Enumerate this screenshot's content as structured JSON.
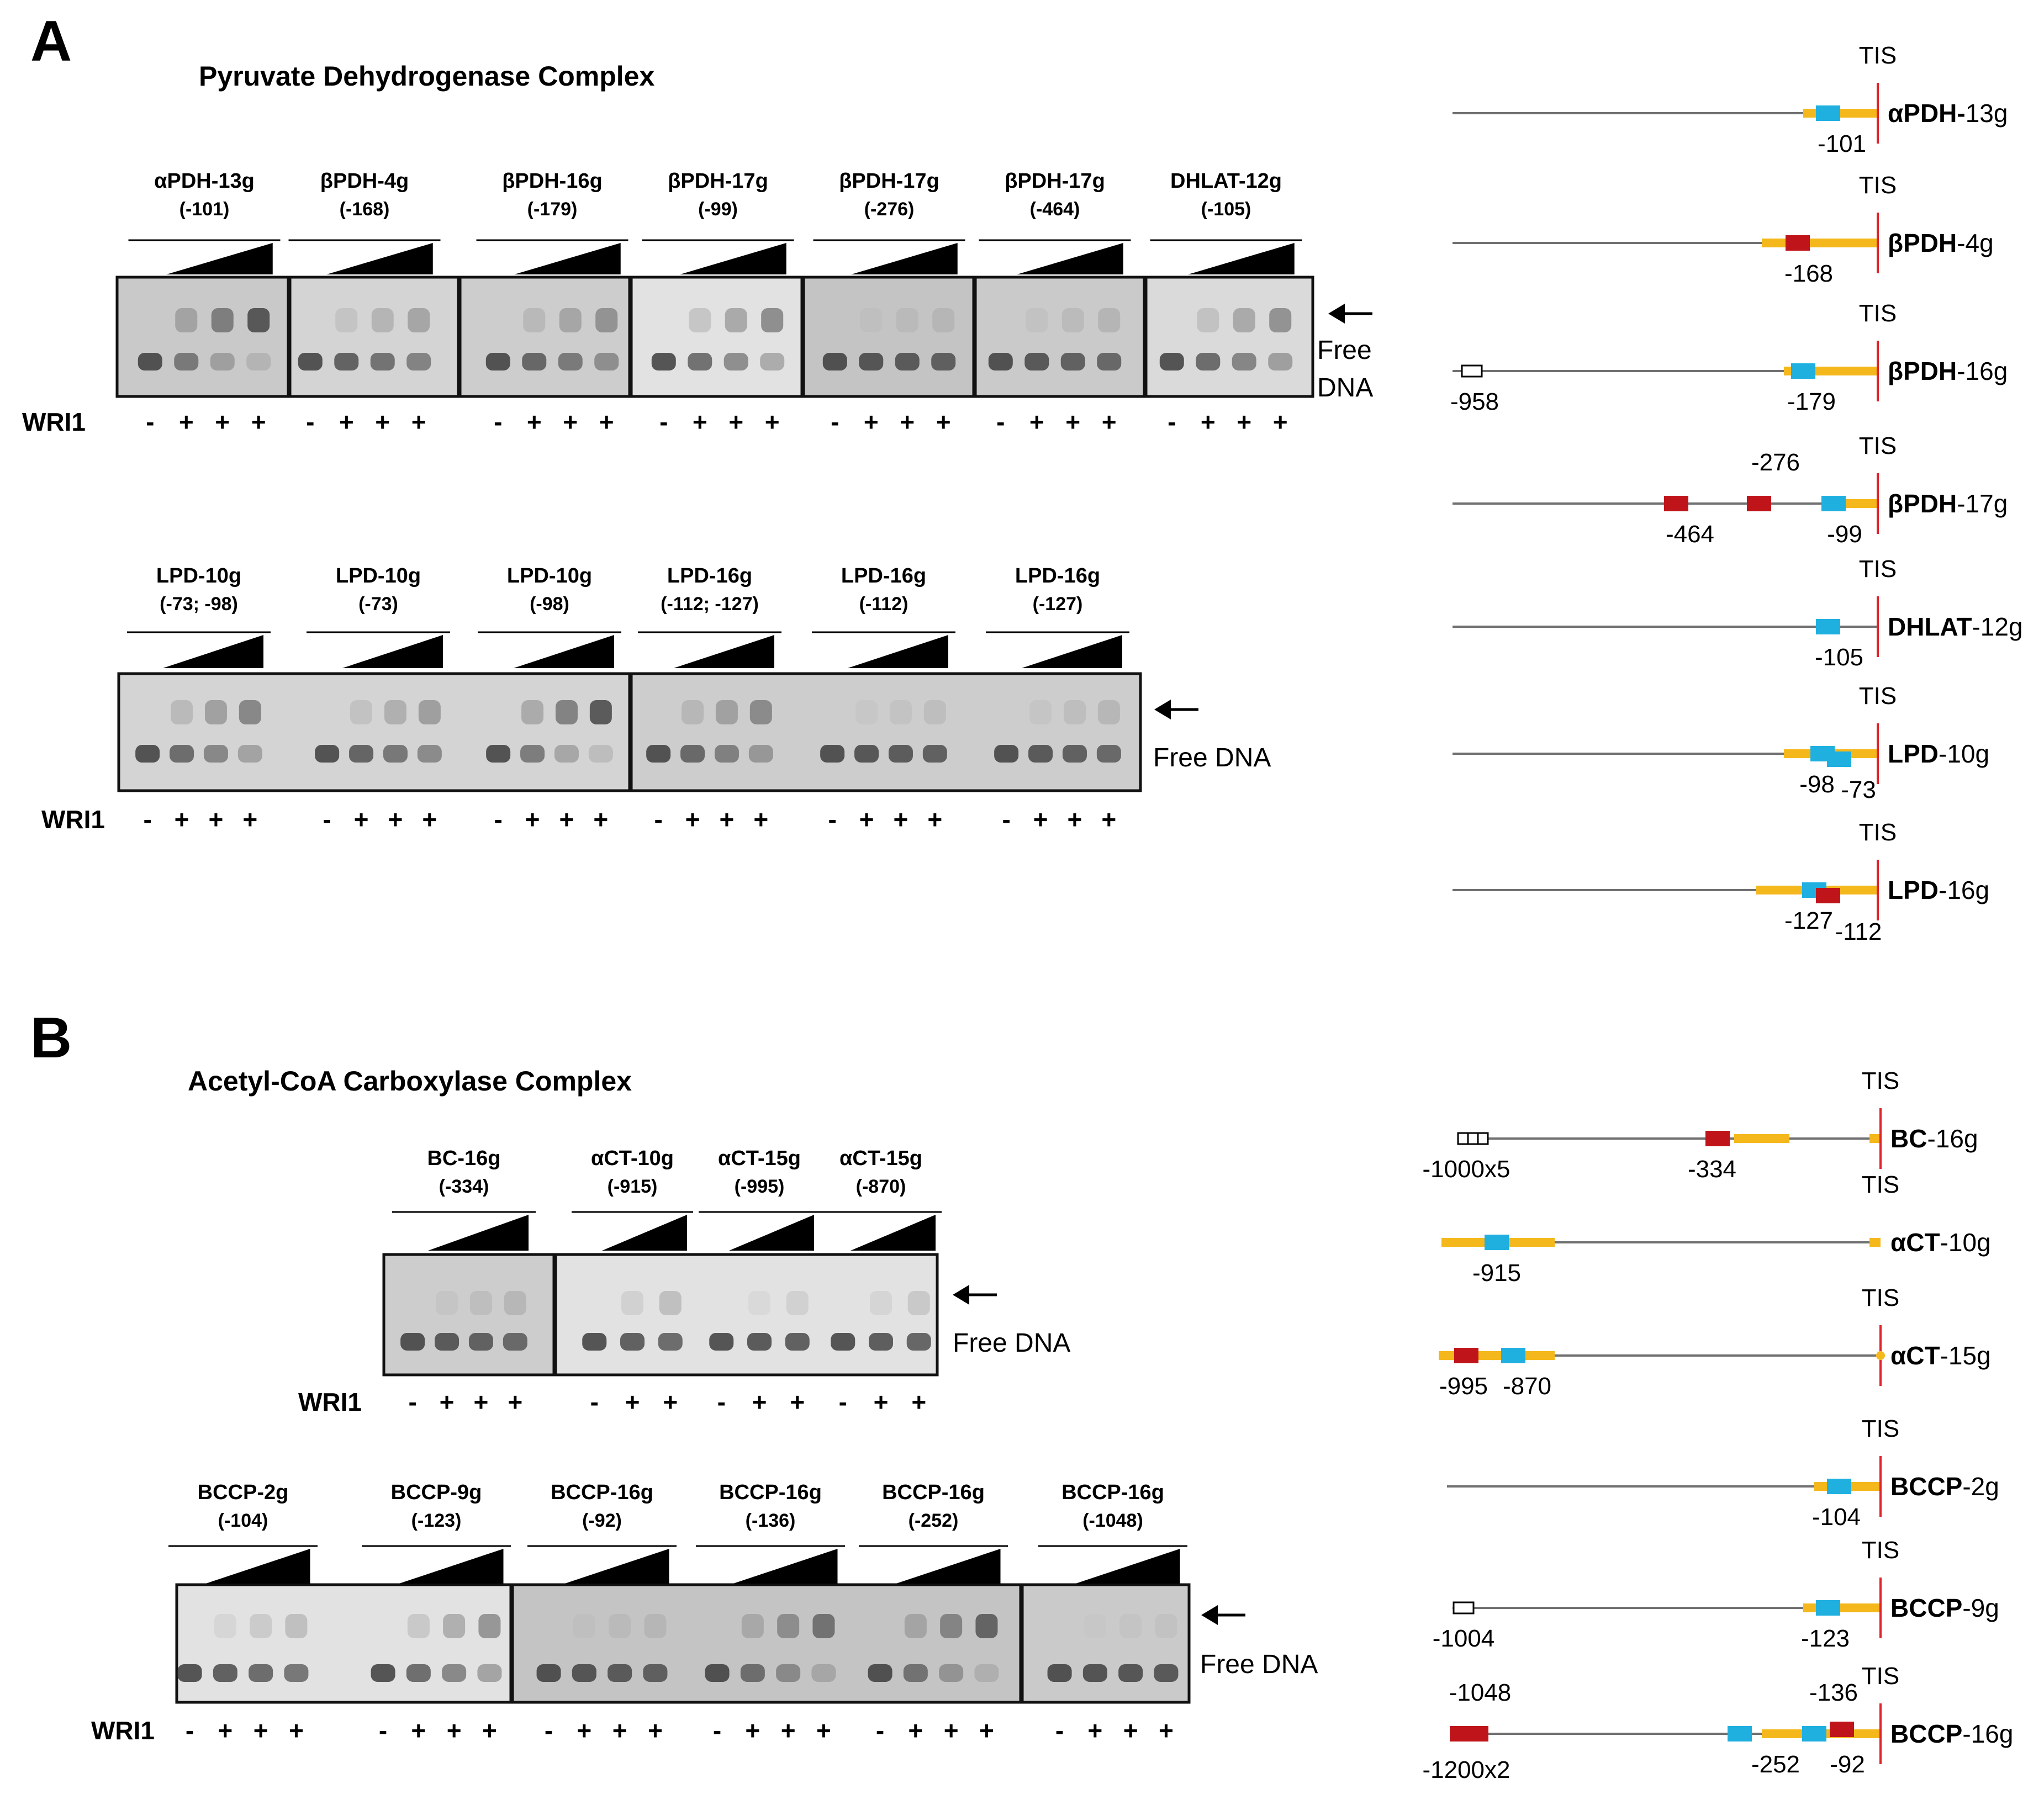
{
  "panelA": {
    "letter": "A",
    "title": "Pyruvate Dehydrogenase Complex",
    "gel_rows": [
      {
        "lanes": [
          {
            "name": "αPDH-13g",
            "pos": "(-101)"
          },
          {
            "name": "βPDH-4g",
            "pos": "(-168)"
          },
          {
            "name": "βPDH-16g",
            "pos": "(-179)"
          },
          {
            "name": "βPDH-17g",
            "pos": "(-99)"
          },
          {
            "name": "βPDH-17g",
            "pos": "(-276)"
          },
          {
            "name": "βPDH-17g",
            "pos": "(-464)"
          },
          {
            "name": "DHLAT-12g",
            "pos": "(-105)"
          }
        ],
        "free_label": [
          "Free",
          "DNA"
        ],
        "wri1_label": "WRI1",
        "wri1_signs": [
          "-",
          "+",
          "+",
          "+"
        ],
        "bound_shift_intensity": [
          0.8,
          0.3,
          0.4,
          0.5,
          0.1,
          0.15,
          0.45
        ]
      },
      {
        "lanes": [
          {
            "name": "LPD-10g",
            "pos": "(-73; -98)"
          },
          {
            "name": "LPD-10g",
            "pos": "(-73)"
          },
          {
            "name": "LPD-10g",
            "pos": "(-98)"
          },
          {
            "name": "LPD-16g",
            "pos": "(-112; -127)"
          },
          {
            "name": "LPD-16g",
            "pos": "(-112)"
          },
          {
            "name": "LPD-16g",
            "pos": "(-127)"
          }
        ],
        "free_label": [
          "Free DNA"
        ],
        "wri1_label": "WRI1",
        "wri1_signs": [
          "-",
          "+",
          "+",
          "+"
        ],
        "bound_shift_intensity": [
          0.5,
          0.35,
          0.8,
          0.45,
          0.1,
          0.15
        ]
      }
    ],
    "maps": [
      {
        "gene": "αPDH-",
        "suffix": "13g",
        "tis": "TIS",
        "labels": [
          "-101"
        ]
      },
      {
        "gene": "βPDH",
        "suffix": "-4g",
        "tis": "TIS",
        "labels": [
          "-168"
        ]
      },
      {
        "gene": "βPDH",
        "suffix": "-16g",
        "tis": "TIS",
        "labels": [
          "-958",
          "-179"
        ]
      },
      {
        "gene": "βPDH",
        "suffix": "-17g",
        "tis": "TIS",
        "labels": [
          "-276",
          "-464",
          "-99"
        ]
      },
      {
        "gene": "DHLAT",
        "suffix": "-12g",
        "tis": "TIS",
        "labels": [
          "-105"
        ]
      },
      {
        "gene": "LPD",
        "suffix": "-10g",
        "tis": "TIS",
        "labels": [
          "-98",
          "-73"
        ]
      },
      {
        "gene": "LPD",
        "suffix": "-16g",
        "tis": "TIS",
        "labels": [
          "-127",
          "-112"
        ]
      }
    ]
  },
  "panelB": {
    "letter": "B",
    "title": "Acetyl-CoA Carboxylase Complex",
    "gel_rows": [
      {
        "lanes": [
          {
            "name": "BC-16g",
            "pos": "(-334)"
          },
          {
            "name": "αCT-10g",
            "pos": "(-915)"
          },
          {
            "name": "αCT-15g",
            "pos": "(-995)"
          },
          {
            "name": "αCT-15g",
            "pos": "(-870)"
          }
        ],
        "free_label": [
          "Free DNA"
        ],
        "wri1_label": "WRI1",
        "wri1_signs_4": [
          "-",
          "+",
          "+",
          "+"
        ],
        "wri1_signs_3": [
          "-",
          "+",
          "+"
        ],
        "bound_shift_intensity": [
          0.15,
          0.2,
          0.1,
          0.15
        ]
      },
      {
        "lanes": [
          {
            "name": "BCCP-2g",
            "pos": "(-104)"
          },
          {
            "name": "BCCP-9g",
            "pos": "(-123)"
          },
          {
            "name": "BCCP-16g",
            "pos": "(-92)"
          },
          {
            "name": "BCCP-16g",
            "pos": "(-136)"
          },
          {
            "name": "BCCP-16g",
            "pos": "(-252)"
          },
          {
            "name": "BCCP-16g",
            "pos": "(-1048)"
          }
        ],
        "free_label": [
          "Free DNA"
        ],
        "wri1_label": "WRI1",
        "wri1_signs": [
          "-",
          "+",
          "+",
          "+"
        ],
        "bound_shift_intensity": [
          0.2,
          0.45,
          0.1,
          0.6,
          0.7,
          0.05
        ]
      }
    ],
    "maps": [
      {
        "gene": "BC",
        "suffix": "-16g",
        "tis": "TIS",
        "labels": [
          "-1000x5",
          "-334"
        ]
      },
      {
        "gene": "αCT",
        "suffix": "-10g",
        "tis": "TIS",
        "labels": [
          "-915"
        ]
      },
      {
        "gene": "αCT",
        "suffix": "-15g",
        "tis": "TIS",
        "labels": [
          "-995",
          "-870"
        ]
      },
      {
        "gene": "BCCP",
        "suffix": "-2g",
        "tis": "TIS",
        "labels": [
          "-104"
        ]
      },
      {
        "gene": "BCCP",
        "suffix": "-9g",
        "tis": "TIS",
        "labels": [
          "-1004",
          "-123"
        ]
      },
      {
        "gene": "BCCP",
        "suffix": "-16g",
        "tis": "TIS",
        "labels": [
          "-1048",
          "-136",
          "-1200x2",
          "-252",
          "-92"
        ]
      }
    ]
  },
  "colors": {
    "accent_yellow": "#f5b81c",
    "site_blue": "#1fb0e0",
    "site_red": "#c0141b",
    "tis_line": "#e0232b",
    "promoter_line": "#707070",
    "gel_bg": "#cfcfcf",
    "band": "#3c3c3c"
  }
}
